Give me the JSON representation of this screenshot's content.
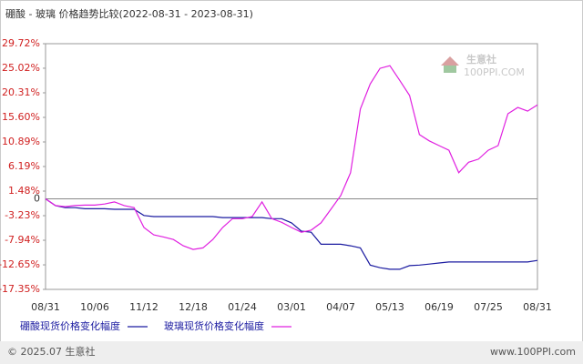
{
  "chart_data": {
    "type": "line",
    "title": "硼酸 - 玻璃 价格趋势比较(2022-08-31 - 2023-08-31)",
    "categories": [
      "08/31",
      null,
      null,
      null,
      null,
      "10/06",
      null,
      null,
      null,
      null,
      "11/12",
      null,
      null,
      null,
      null,
      "12/18",
      null,
      null,
      null,
      null,
      "01/24",
      null,
      null,
      null,
      null,
      "03/01",
      null,
      null,
      null,
      null,
      "04/07",
      null,
      null,
      null,
      null,
      "05/13",
      null,
      null,
      null,
      null,
      "06/19",
      null,
      null,
      null,
      null,
      "07/25",
      null,
      null,
      null,
      null,
      "08/31"
    ],
    "series": [
      {
        "name": "硼酸现货价格变化幅度",
        "color": "#1a1aa0",
        "values": [
          0,
          -1.3,
          -1.7,
          -1.7,
          -1.9,
          -1.9,
          -1.9,
          -2.0,
          -2.0,
          -2.0,
          -3.2,
          -3.4,
          -3.4,
          -3.4,
          -3.4,
          -3.4,
          -3.4,
          -3.4,
          -3.6,
          -3.6,
          -3.6,
          -3.6,
          -3.6,
          -3.8,
          -3.8,
          -4.6,
          -6.2,
          -6.4,
          -8.7,
          -8.7,
          -8.7,
          -9.0,
          -9.4,
          -12.7,
          -13.2,
          -13.5,
          -13.5,
          -12.8,
          -12.7,
          -12.5,
          -12.3,
          -12.1,
          -12.1,
          -12.1,
          -12.1,
          -12.1,
          -12.1,
          -12.1,
          -12.1,
          -12.1,
          -11.8
        ]
      },
      {
        "name": "玻璃现货价格变化幅度",
        "color": "#e020e0",
        "values": [
          0,
          -1.3,
          -1.5,
          -1.3,
          -1.2,
          -1.2,
          -1.0,
          -0.6,
          -1.3,
          -1.7,
          -5.5,
          -6.9,
          -7.3,
          -7.8,
          -9.0,
          -9.7,
          -9.4,
          -7.8,
          -5.5,
          -3.8,
          -3.8,
          -3.4,
          -0.6,
          -3.8,
          -4.5,
          -5.5,
          -6.4,
          -6.0,
          -4.6,
          -2.0,
          0.6,
          5.0,
          17.2,
          22.0,
          25.0,
          25.5,
          22.7,
          19.8,
          12.3,
          11.1,
          10.2,
          9.3,
          5.0,
          7.0,
          7.6,
          9.3,
          10.2,
          16.3,
          17.5,
          16.8,
          18.0
        ]
      }
    ],
    "ylim": [
      -17.35,
      29.72
    ],
    "yticks": [
      {
        "value": 29.72,
        "label": "29.72%"
      },
      {
        "value": 25.02,
        "label": "25.02%"
      },
      {
        "value": 20.31,
        "label": "20.31%"
      },
      {
        "value": 15.6,
        "label": "15.60%"
      },
      {
        "value": 10.89,
        "label": "10.89%"
      },
      {
        "value": 6.19,
        "label": "6.19%"
      },
      {
        "value": 1.48,
        "label": "1.48%"
      },
      0,
      {
        "value": -3.23,
        "label": "-3.23%"
      },
      {
        "value": -7.94,
        "label": "-7.94%"
      },
      {
        "value": -12.65,
        "label": "-12.65%"
      },
      {
        "value": -17.35,
        "label": "-17.35%"
      }
    ],
    "watermark": [
      "生意社",
      "100PPI.COM"
    ],
    "footer": {
      "left": "© 2025.07 生意社",
      "right": "www.100PPI.com"
    }
  }
}
